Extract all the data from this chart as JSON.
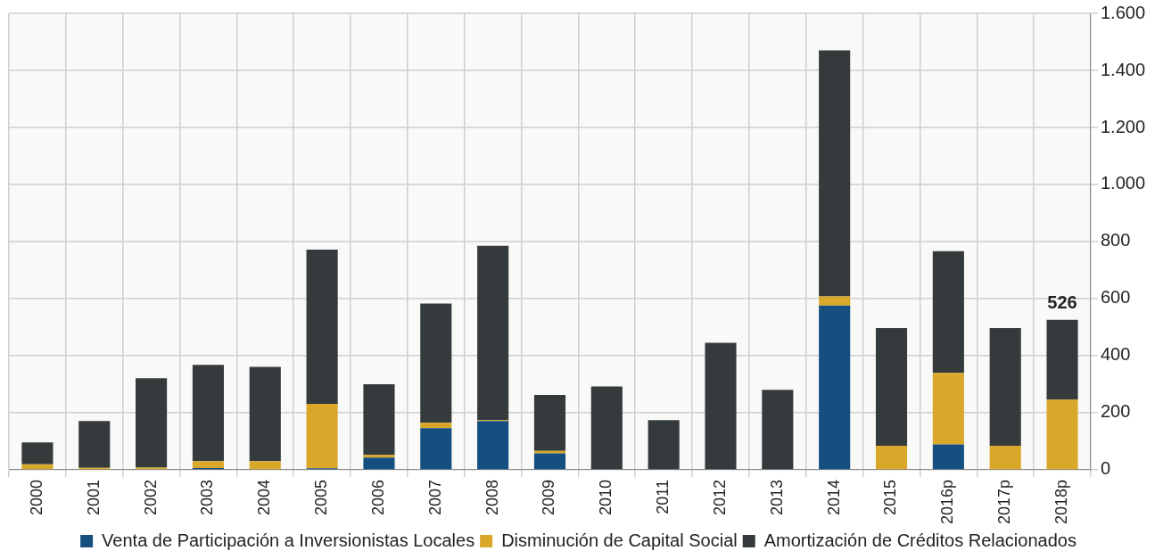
{
  "chart_data": {
    "type": "bar",
    "stacked": true,
    "categories": [
      "2000",
      "2001",
      "2002",
      "2003",
      "2004",
      "2005",
      "2006",
      "2007",
      "2008",
      "2009",
      "2010",
      "2011",
      "2012",
      "2013",
      "2014",
      "2015",
      "2016p",
      "2017p",
      "2018p"
    ],
    "series": [
      {
        "name": "Venta de Participación a Inversionistas Locales",
        "color": "#154f80",
        "values": [
          0,
          0,
          0,
          6,
          0,
          5,
          43,
          146,
          171,
          58,
          0,
          0,
          0,
          0,
          576,
          0,
          89,
          0,
          0
        ]
      },
      {
        "name": "Disminución de Capital Social",
        "color": "#d9a82a",
        "values": [
          19,
          7,
          8,
          24,
          30,
          226,
          9,
          19,
          3,
          8,
          0,
          0,
          0,
          0,
          32,
          84,
          251,
          84,
          246
        ]
      },
      {
        "name": "Amortización de Créditos Relacionados",
        "color": "#353a3d",
        "values": [
          77,
          164,
          313,
          338,
          331,
          541,
          248,
          418,
          611,
          196,
          292,
          174,
          445,
          280,
          862,
          413,
          426,
          413,
          280
        ]
      }
    ],
    "totals": [
      null,
      null,
      null,
      null,
      null,
      null,
      null,
      null,
      null,
      null,
      null,
      null,
      null,
      null,
      null,
      null,
      null,
      null,
      "526"
    ],
    "ylim": [
      0,
      1600
    ],
    "yticks": [
      0,
      200,
      400,
      600,
      800,
      {
        "value": 1000,
        "label": "1.000"
      },
      {
        "value": 1200,
        "label": "1.200"
      },
      {
        "value": 1400,
        "label": "1.400"
      },
      {
        "value": 1600,
        "label": "1.600"
      }
    ],
    "grid": true,
    "legend": "bottom"
  }
}
